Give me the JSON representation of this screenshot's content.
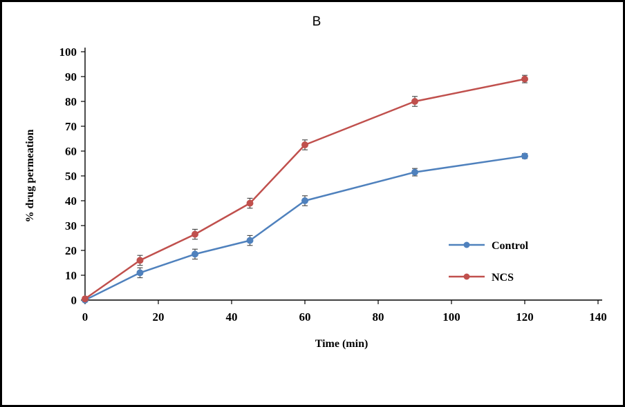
{
  "figure": {
    "title": "B",
    "x_axis_label": "Time (min)",
    "y_axis_label": "% drug permeation"
  },
  "chart_data": {
    "type": "line",
    "title": "B",
    "xlabel": "Time (min)",
    "ylabel": "% drug permeation",
    "xlim": [
      0,
      140
    ],
    "ylim": [
      0,
      100
    ],
    "xticks": [
      0,
      20,
      40,
      60,
      80,
      100,
      120,
      140
    ],
    "yticks": [
      0,
      10,
      20,
      30,
      40,
      50,
      60,
      70,
      80,
      90,
      100
    ],
    "grid": false,
    "legend_position": "inside-right",
    "axis_color": "#000000",
    "error_bar_color": "#404040",
    "x": [
      0,
      15,
      30,
      45,
      60,
      90,
      120
    ],
    "series": [
      {
        "name": "Control",
        "color": "#4F81BD",
        "values": [
          0,
          11,
          18.5,
          24,
          40,
          51.5,
          58
        ],
        "error": [
          0.5,
          2,
          2,
          2,
          2,
          1.5,
          1
        ]
      },
      {
        "name": "NCS",
        "color": "#C0504D",
        "values": [
          0.5,
          16,
          26.5,
          39,
          62.5,
          80,
          89
        ],
        "error": [
          0.5,
          2,
          2,
          2,
          2,
          2,
          1.5
        ]
      }
    ]
  }
}
